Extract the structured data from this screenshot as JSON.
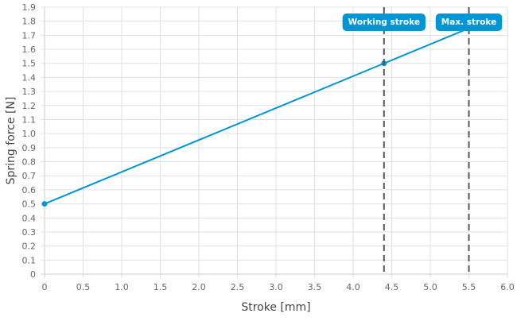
{
  "chart_data": {
    "type": "line",
    "xlabel": "Stroke [mm]",
    "ylabel": "Spring force [N]",
    "xlim": [
      0,
      6.0
    ],
    "ylim": [
      0,
      1.9
    ],
    "xticks": [
      "0",
      "0.5",
      "1.0",
      "1.5",
      "2.0",
      "2.5",
      "3.0",
      "3.5",
      "4.0",
      "4.5",
      "5.0",
      "5.5",
      "6.0"
    ],
    "yticks": [
      "0",
      "0.1",
      "0.2",
      "0.3",
      "0.4",
      "0.5",
      "0.6",
      "0.7",
      "0.8",
      "0.9",
      "1.0",
      "1.1",
      "1.2",
      "1.3",
      "1.4",
      "1.5",
      "1.6",
      "1.7",
      "1.8",
      "1.9"
    ],
    "grid": true,
    "series": [
      {
        "x": [
          0,
          4.4,
          5.5
        ],
        "y": [
          0.5,
          1.5,
          1.75
        ],
        "markers_at": [
          0,
          4.4
        ]
      }
    ],
    "vertical_markers": [
      {
        "x": 4.4,
        "label": "Working stroke"
      },
      {
        "x": 5.5,
        "label": "Max. stroke"
      }
    ],
    "colors": {
      "line": "#0096d6",
      "marker_line": "#555555",
      "label_bg": "#0096d6",
      "grid": "#e0e0e0"
    }
  }
}
